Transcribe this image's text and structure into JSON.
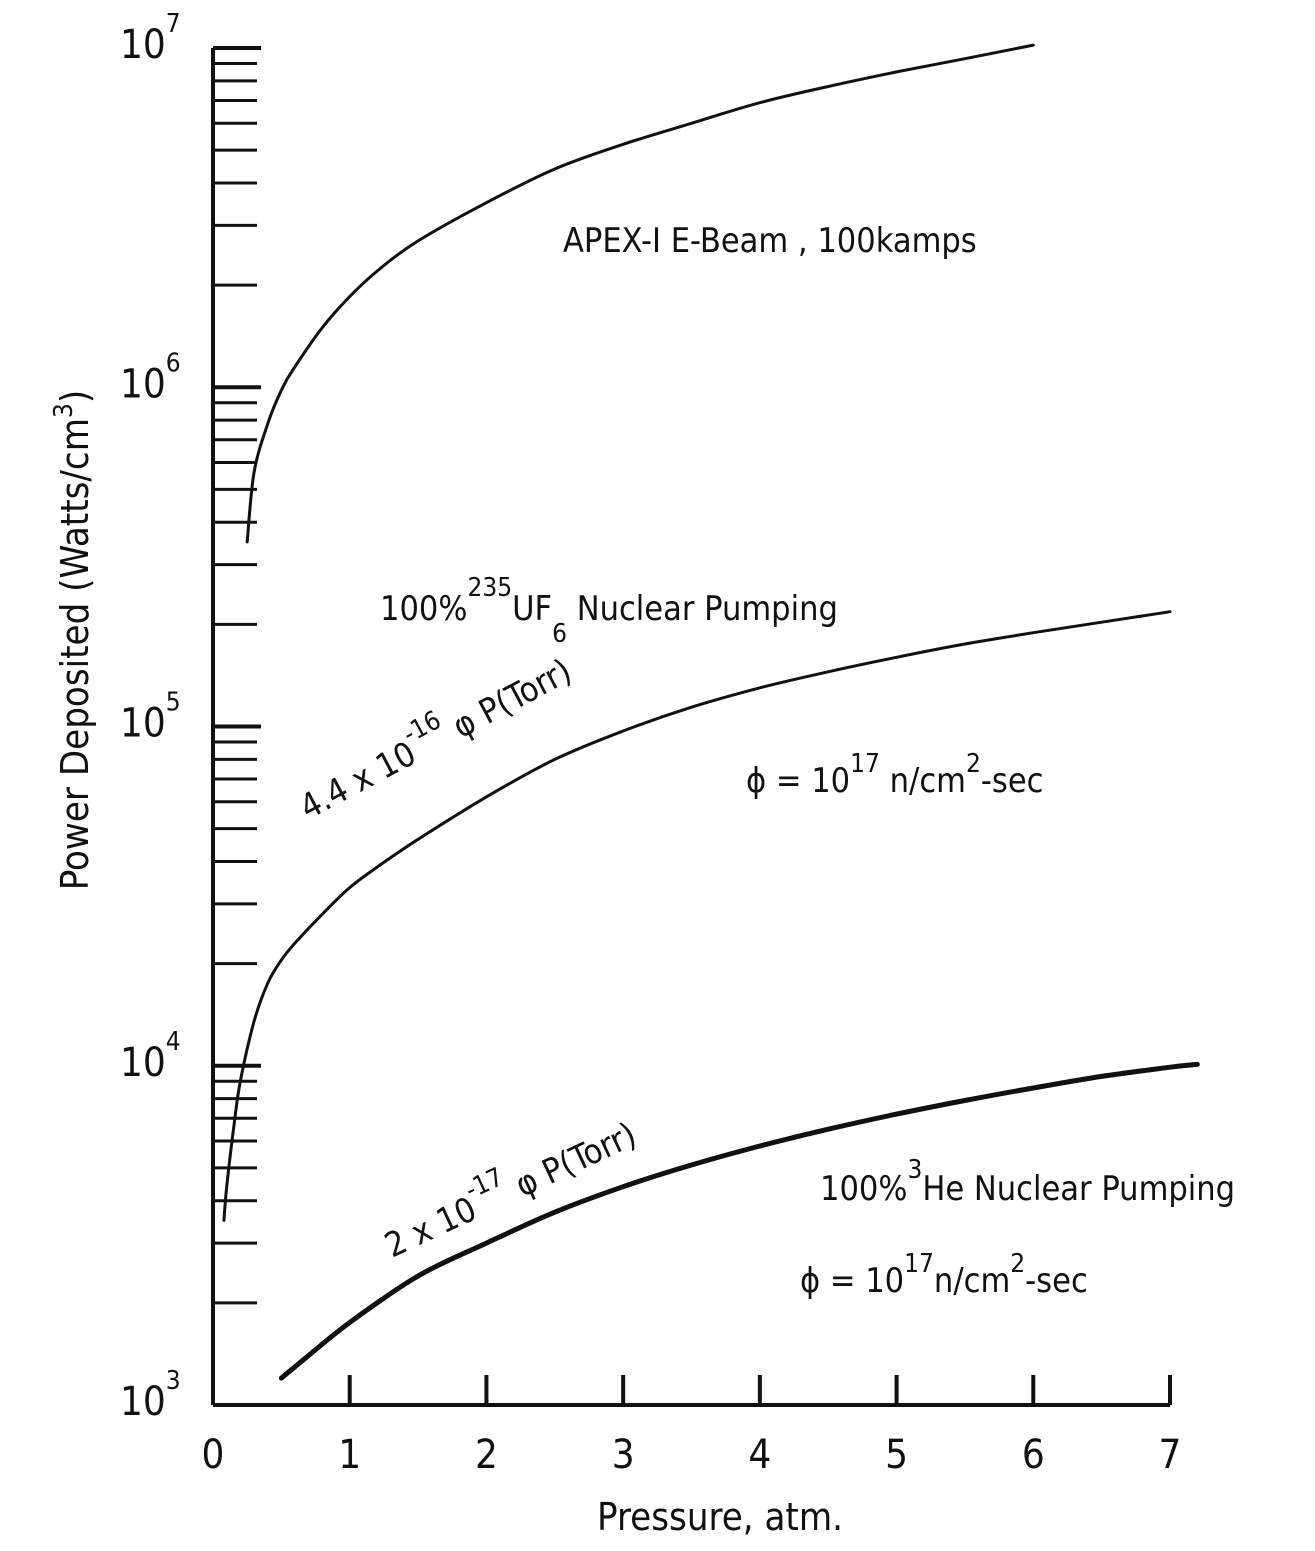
{
  "chart_data": {
    "type": "line",
    "title": "",
    "xlabel": "Pressure,  atm.",
    "ylabel": "Power Deposited  (Watts/cm",
    "ylabel_sup": "3",
    "ylabel_close": ")",
    "xlim": [
      0,
      7
    ],
    "ylim": [
      1000,
      10000000
    ],
    "yscale": "log",
    "grid": false,
    "x_ticks": [
      0,
      1,
      2,
      3,
      4,
      5,
      6,
      7
    ],
    "x_tick_labels": [
      "0",
      "1",
      "2",
      "3",
      "4",
      "5",
      "6",
      "7"
    ],
    "y_ticks": [
      1000,
      10000,
      100000,
      1000000,
      10000000
    ],
    "y_tick_labels": [
      {
        "base": "10",
        "exp": "3"
      },
      {
        "base": "10",
        "exp": "4"
      },
      {
        "base": "10",
        "exp": "5"
      },
      {
        "base": "10",
        "exp": "6"
      },
      {
        "base": "10",
        "exp": "7"
      }
    ],
    "series": [
      {
        "x": [
          0.25,
          0.3,
          0.4,
          0.5,
          0.6,
          0.8,
          1.0,
          1.2,
          1.5,
          2.0,
          2.5,
          3.0,
          3.5,
          4.0,
          4.5,
          5.0,
          5.5,
          6.0
        ],
        "values": [
          350000,
          560000,
          780000,
          980000,
          1150000,
          1500000,
          1850000,
          2200000,
          2700000,
          3500000,
          4400000,
          5200000,
          6000000,
          6900000,
          7700000,
          8500000,
          9300000,
          10200000
        ],
        "stroke_width": 3
      },
      {
        "x": [
          0.08,
          0.1,
          0.15,
          0.2,
          0.3,
          0.4,
          0.5,
          0.6,
          0.8,
          1.0,
          1.2,
          1.5,
          2.0,
          2.5,
          3.0,
          3.5,
          4.0,
          4.5,
          5.0,
          5.5,
          6.0,
          6.5,
          7.0
        ],
        "values": [
          3500,
          4400,
          6500,
          9000,
          13500,
          17500,
          20500,
          23000,
          28000,
          33500,
          38500,
          46500,
          62000,
          80000,
          97000,
          114000,
          130000,
          145000,
          160000,
          175000,
          189000,
          203000,
          218000
        ],
        "stroke_width": 3
      },
      {
        "x": [
          0.5,
          0.7,
          1.0,
          1.5,
          2.0,
          2.5,
          3.0,
          3.5,
          4.0,
          4.5,
          5.0,
          5.5,
          6.0,
          6.5,
          7.0,
          7.2
        ],
        "values": [
          1200,
          1400,
          1750,
          2400,
          3000,
          3700,
          4400,
          5100,
          5800,
          6500,
          7200,
          7900,
          8600,
          9300,
          9900,
          10100
        ],
        "stroke_width": 5
      }
    ],
    "annotations": {
      "ebeam": "APEX-I E-Beam , 100kamps",
      "uf6_pre": "100%",
      "uf6_sup": "235",
      "uf6_mid": "UF",
      "uf6_sub": "6",
      "uf6_post": " Nuclear Pumping",
      "uf6_formula_base": "4.4 x 10",
      "uf6_formula_exp": "-16",
      "uf6_formula_tail": " φ P(Torr)",
      "flux1_base": "ϕ = 10",
      "flux1_exp": "17",
      "flux1_unit": " n/cm",
      "flux1_unit_exp": "2",
      "flux1_tail": "-sec",
      "he_pre": "100%",
      "he_sup": "3",
      "he_post": "He  Nuclear  Pumping",
      "he_formula_base": "2 x 10",
      "he_formula_exp": "-17",
      "he_formula_tail": " φ P(Torr)",
      "flux2_base": "ϕ = 10",
      "flux2_exp": "17",
      "flux2_unit": "n/cm",
      "flux2_unit_exp": "2",
      "flux2_tail": "-sec"
    },
    "colors": {
      "ink": "#111111",
      "background": "#ffffff"
    }
  }
}
